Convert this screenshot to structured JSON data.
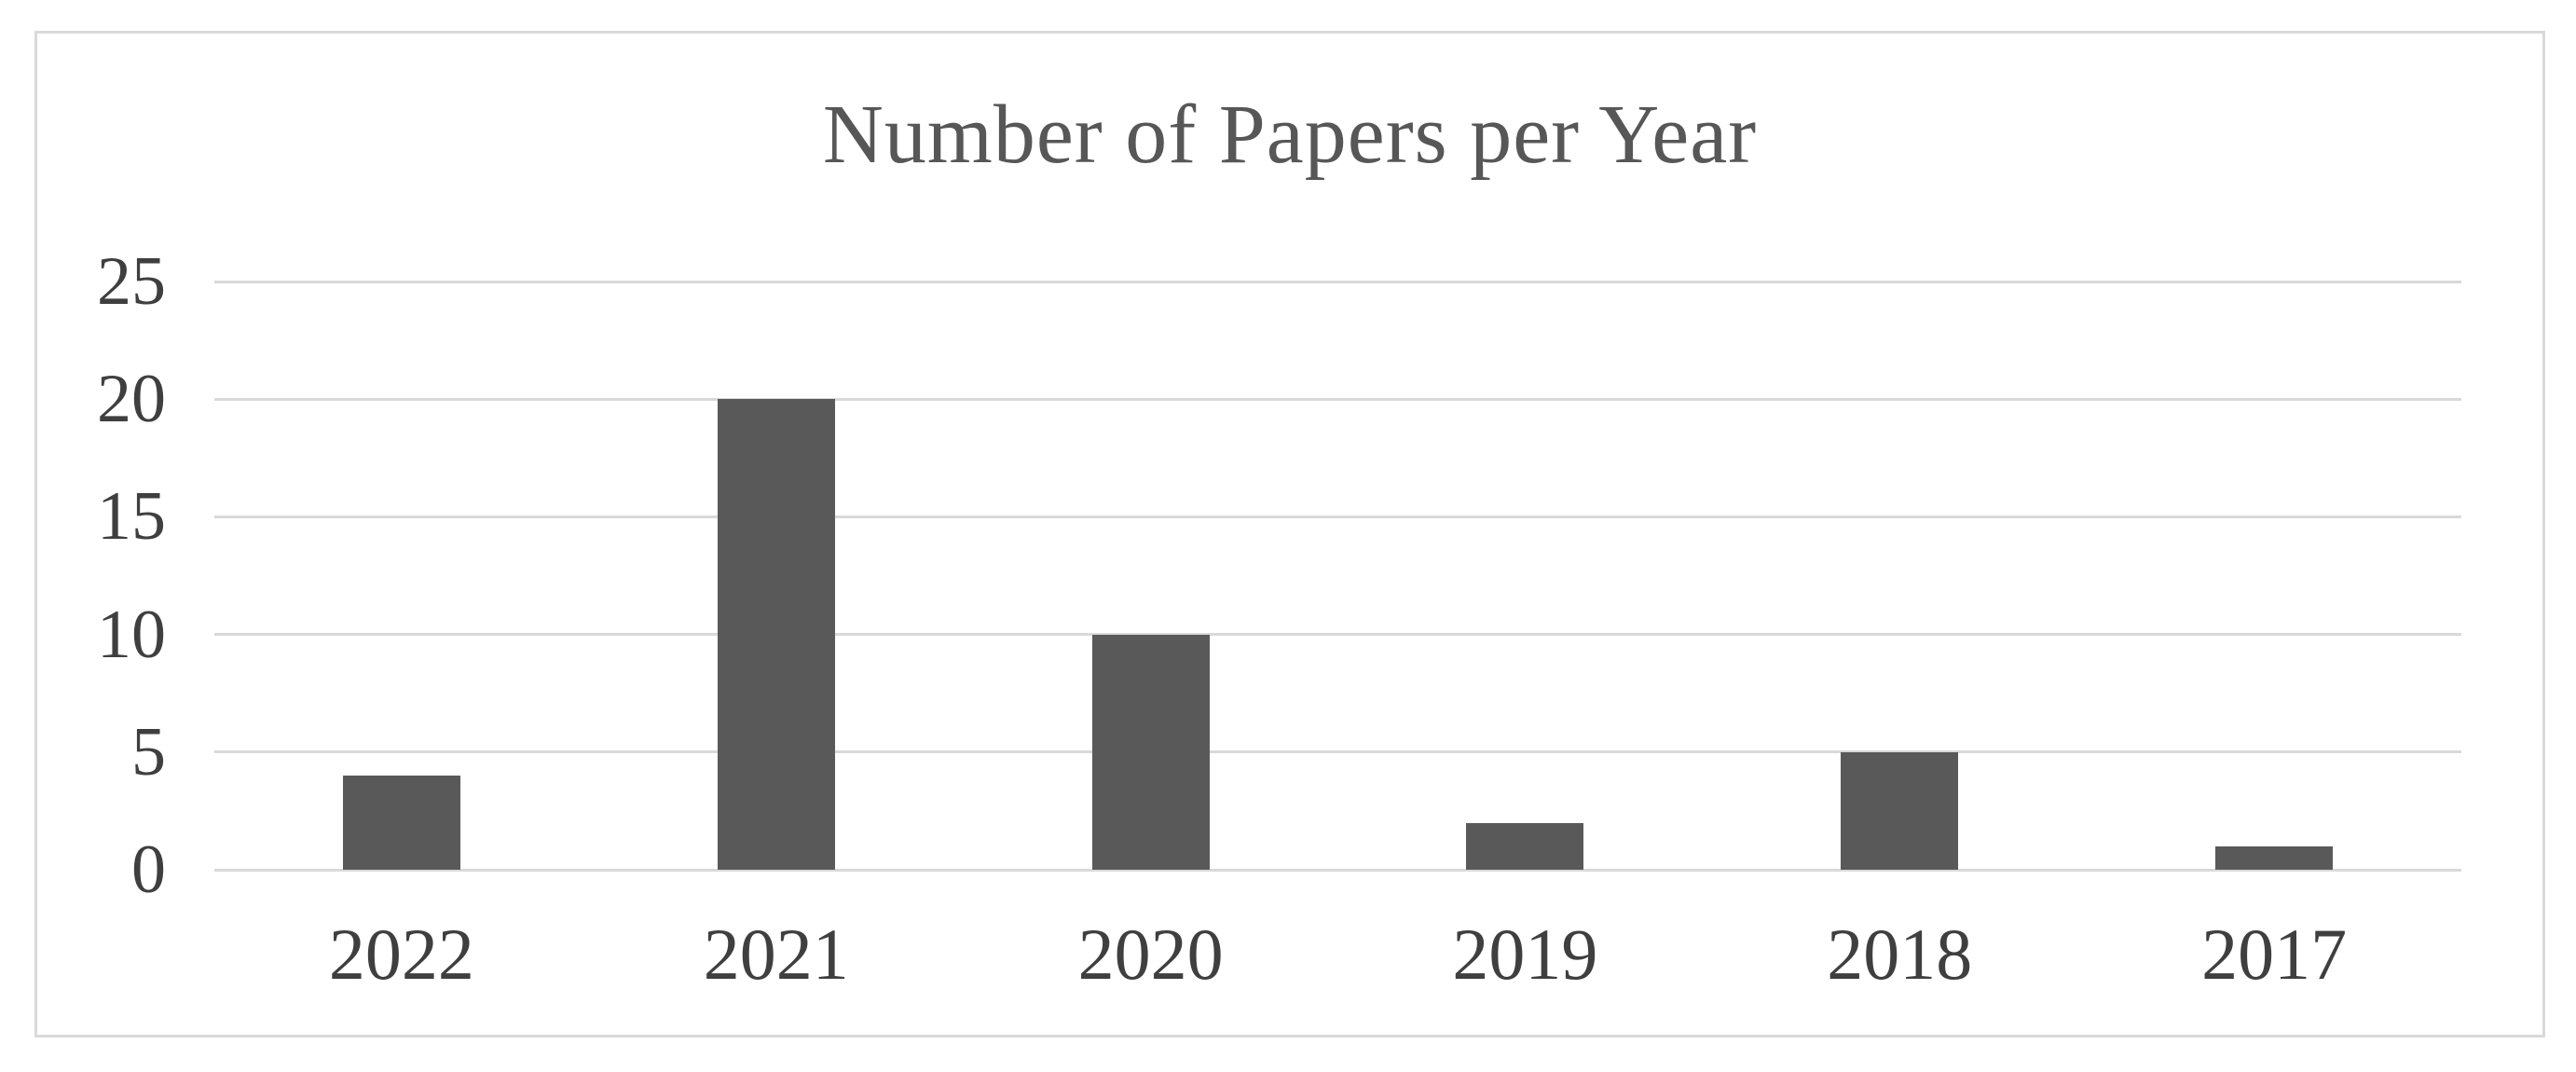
{
  "chart_data": {
    "type": "bar",
    "title": "Number of Papers per Year",
    "categories": [
      "2022",
      "2021",
      "2020",
      "2019",
      "2018",
      "2017"
    ],
    "values": [
      4,
      20,
      10,
      2,
      5,
      1
    ],
    "xlabel": "",
    "ylabel": "",
    "y_ticks": [
      0,
      5,
      10,
      15,
      20,
      25
    ],
    "ylim": [
      0,
      25
    ],
    "grid": "horizontal",
    "legend": "none",
    "colors": {
      "bar": "#595959",
      "gridline": "#d9d9d9",
      "frame_border": "#d9d9d9",
      "title_text": "#575757",
      "axis_text": "#3f3f3f",
      "background": "#ffffff"
    }
  }
}
